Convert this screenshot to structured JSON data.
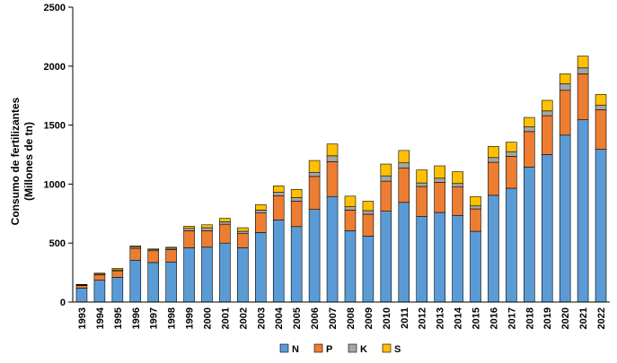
{
  "chart_data": {
    "type": "bar",
    "stacked": true,
    "title": "",
    "xlabel": "",
    "ylabel_lines": [
      "Consumo de fertilizantes",
      "(Millones de tn)"
    ],
    "ylim": [
      0,
      2500
    ],
    "yticks": [
      0,
      500,
      1000,
      1500,
      2000,
      2500
    ],
    "grid": false,
    "legend_position": "bottom",
    "categories": [
      "1993",
      "1994",
      "1995",
      "1996",
      "1997",
      "1998",
      "1999",
      "2000",
      "2001",
      "2002",
      "2003",
      "2004",
      "2005",
      "2006",
      "2007",
      "2008",
      "2009",
      "2010",
      "2011",
      "2012",
      "2013",
      "2014",
      "2015",
      "2016",
      "2017",
      "2018",
      "2019",
      "2020",
      "2021",
      "2022"
    ],
    "series": [
      {
        "name": "N",
        "color": "#5B9BD5",
        "values": [
          118,
          185,
          210,
          355,
          335,
          340,
          460,
          465,
          500,
          460,
          590,
          695,
          640,
          785,
          895,
          605,
          560,
          770,
          845,
          725,
          760,
          735,
          600,
          905,
          965,
          1145,
          1250,
          1415,
          1545,
          1295
        ]
      },
      {
        "name": "P",
        "color": "#ED7D31",
        "values": [
          22,
          45,
          55,
          100,
          100,
          105,
          145,
          140,
          160,
          120,
          165,
          205,
          215,
          280,
          295,
          175,
          185,
          255,
          290,
          255,
          255,
          240,
          190,
          280,
          270,
          300,
          330,
          380,
          390,
          335
        ]
      },
      {
        "name": "K",
        "color": "#A5A5A5",
        "values": [
          5,
          7,
          8,
          12,
          8,
          12,
          20,
          25,
          20,
          20,
          25,
          30,
          30,
          35,
          50,
          28,
          30,
          45,
          45,
          30,
          35,
          30,
          25,
          40,
          40,
          40,
          40,
          55,
          50,
          40
        ]
      },
      {
        "name": "S",
        "color": "#FFC000",
        "values": [
          5,
          8,
          12,
          10,
          7,
          8,
          18,
          25,
          30,
          30,
          45,
          55,
          70,
          100,
          100,
          90,
          80,
          100,
          105,
          110,
          105,
          100,
          80,
          95,
          80,
          80,
          90,
          85,
          100,
          90
        ]
      }
    ]
  }
}
